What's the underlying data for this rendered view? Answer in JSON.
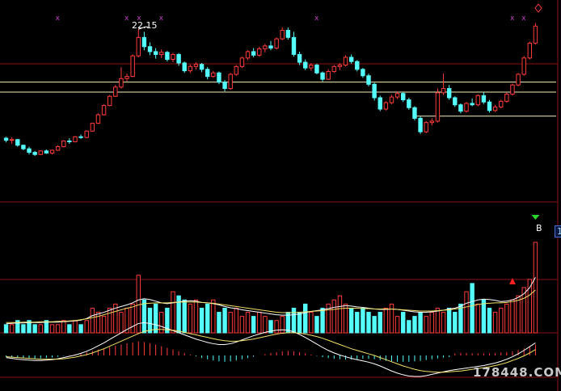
{
  "chart_data": [
    {
      "type": "candlestick",
      "panel": "price",
      "title": "",
      "annotation_high": "22.15",
      "support_lines": [
        "upper",
        "middle",
        "lower"
      ],
      "markers": [
        "x",
        "x",
        "x",
        "x",
        "x",
        "x",
        "x",
        "diamond"
      ],
      "ohlc": [
        [
          6.8,
          7.0,
          6.2,
          6.5
        ],
        [
          6.5,
          6.9,
          6.0,
          6.6
        ],
        [
          6.6,
          6.7,
          5.6,
          5.8
        ],
        [
          5.8,
          5.9,
          5.1,
          5.3
        ],
        [
          5.3,
          5.6,
          4.5,
          4.8
        ],
        [
          4.8,
          5.0,
          4.3,
          4.5
        ],
        [
          4.5,
          5.1,
          4.4,
          5.0
        ],
        [
          5.0,
          5.2,
          4.6,
          4.7
        ],
        [
          4.7,
          5.2,
          4.5,
          5.1
        ],
        [
          5.1,
          5.8,
          5.0,
          5.6
        ],
        [
          5.6,
          6.5,
          5.5,
          6.4
        ],
        [
          6.4,
          6.8,
          6.0,
          6.3
        ],
        [
          6.3,
          7.1,
          6.2,
          7.0
        ],
        [
          7.0,
          7.3,
          6.7,
          6.9
        ],
        [
          6.9,
          7.9,
          6.8,
          7.8
        ],
        [
          7.8,
          9.0,
          7.7,
          8.9
        ],
        [
          8.9,
          10.3,
          8.8,
          10.1
        ],
        [
          10.1,
          11.6,
          10.0,
          11.4
        ],
        [
          11.4,
          12.9,
          11.3,
          12.7
        ],
        [
          12.7,
          14.3,
          12.6,
          14.0
        ],
        [
          14.0,
          16.8,
          13.8,
          15.2
        ],
        [
          15.2,
          15.9,
          14.8,
          15.5
        ],
        [
          15.5,
          18.6,
          15.4,
          18.4
        ],
        [
          18.4,
          22.15,
          18.2,
          21.0
        ],
        [
          21.0,
          21.8,
          19.2,
          19.7
        ],
        [
          19.7,
          20.3,
          18.5,
          19.0
        ],
        [
          19.0,
          19.5,
          18.0,
          18.6
        ],
        [
          18.6,
          19.3,
          18.1,
          18.9
        ],
        [
          18.9,
          19.1,
          17.6,
          17.9
        ],
        [
          17.9,
          18.8,
          17.5,
          18.6
        ],
        [
          18.6,
          18.8,
          17.0,
          17.4
        ],
        [
          17.4,
          17.6,
          16.0,
          16.3
        ],
        [
          16.3,
          17.2,
          16.0,
          16.9
        ],
        [
          16.9,
          17.5,
          16.5,
          17.2
        ],
        [
          17.2,
          17.4,
          16.1,
          16.5
        ],
        [
          16.5,
          16.8,
          15.1,
          15.5
        ],
        [
          15.5,
          16.3,
          15.3,
          16.0
        ],
        [
          16.0,
          16.2,
          14.4,
          14.7
        ],
        [
          14.7,
          15.0,
          13.4,
          13.8
        ],
        [
          13.8,
          16.0,
          13.6,
          15.8
        ],
        [
          15.8,
          17.1,
          15.6,
          16.9
        ],
        [
          16.9,
          18.3,
          16.7,
          18.1
        ],
        [
          18.1,
          19.2,
          17.8,
          19.0
        ],
        [
          19.0,
          19.5,
          18.2,
          18.5
        ],
        [
          18.5,
          19.7,
          18.3,
          19.4
        ],
        [
          19.4,
          20.1,
          18.9,
          19.8
        ],
        [
          19.8,
          20.5,
          19.2,
          19.5
        ],
        [
          19.5,
          21.0,
          19.3,
          20.8
        ],
        [
          20.8,
          22.4,
          20.6,
          22.0
        ],
        [
          22.0,
          22.4,
          20.7,
          21.0
        ],
        [
          21.0,
          21.8,
          18.3,
          18.6
        ],
        [
          18.6,
          19.0,
          17.1,
          17.5
        ],
        [
          17.5,
          17.9,
          16.4,
          16.7
        ],
        [
          16.7,
          17.4,
          16.3,
          17.1
        ],
        [
          17.1,
          17.3,
          15.8,
          16.0
        ],
        [
          16.0,
          16.2,
          14.8,
          15.1
        ],
        [
          15.1,
          16.5,
          15.0,
          16.2
        ],
        [
          16.2,
          17.1,
          16.0,
          16.9
        ],
        [
          16.9,
          17.4,
          16.4,
          17.1
        ],
        [
          17.1,
          18.5,
          16.9,
          18.2
        ],
        [
          18.2,
          18.6,
          17.3,
          17.6
        ],
        [
          17.6,
          17.8,
          16.2,
          16.5
        ],
        [
          16.5,
          16.7,
          15.3,
          15.6
        ],
        [
          15.6,
          15.9,
          14.1,
          14.4
        ],
        [
          14.4,
          14.6,
          12.1,
          12.5
        ],
        [
          12.5,
          12.8,
          10.6,
          10.9
        ],
        [
          10.9,
          12.0,
          10.7,
          11.8
        ],
        [
          11.8,
          12.9,
          11.6,
          12.6
        ],
        [
          12.6,
          13.4,
          12.3,
          13.1
        ],
        [
          13.1,
          13.3,
          11.9,
          12.2
        ],
        [
          12.2,
          12.5,
          10.8,
          11.1
        ],
        [
          11.1,
          11.3,
          9.3,
          9.6
        ],
        [
          9.6,
          9.9,
          7.4,
          7.7
        ],
        [
          7.7,
          9.2,
          7.5,
          9.0
        ],
        [
          9.0,
          9.6,
          8.6,
          9.2
        ],
        [
          9.2,
          13.8,
          9.0,
          13.2
        ],
        [
          13.2,
          15.9,
          12.9,
          13.8
        ],
        [
          13.8,
          14.3,
          12.2,
          12.5
        ],
        [
          12.5,
          12.7,
          11.2,
          11.5
        ],
        [
          11.5,
          11.7,
          10.3,
          10.6
        ],
        [
          10.6,
          11.9,
          10.4,
          11.7
        ],
        [
          11.7,
          12.4,
          11.3,
          11.5
        ],
        [
          11.5,
          13.0,
          11.3,
          12.8
        ],
        [
          12.8,
          13.3,
          11.6,
          11.9
        ],
        [
          11.9,
          12.2,
          10.4,
          10.7
        ],
        [
          10.7,
          11.5,
          10.5,
          11.2
        ],
        [
          11.2,
          12.2,
          11.0,
          12.0
        ],
        [
          12.0,
          13.2,
          11.8,
          13.0
        ],
        [
          13.0,
          14.5,
          12.8,
          14.3
        ],
        [
          14.3,
          16.0,
          14.1,
          15.8
        ],
        [
          15.8,
          18.4,
          15.6,
          18.1
        ],
        [
          18.1,
          20.4,
          17.9,
          20.2
        ],
        [
          20.2,
          23.0,
          20.0,
          22.6
        ]
      ],
      "h_lines": [
        14.7,
        13.3,
        9.9
      ]
    },
    {
      "type": "bar",
      "panel": "volume",
      "title": "",
      "side_label": "1",
      "signal_label": "B",
      "values": [
        2,
        2,
        3,
        2,
        3,
        2,
        2,
        3,
        2,
        2,
        3,
        2,
        3,
        2,
        3,
        6,
        5,
        4,
        6,
        7,
        5,
        6,
        7,
        14,
        8,
        6,
        7,
        5,
        6,
        10,
        9,
        8,
        7,
        8,
        6,
        7,
        8,
        5,
        6,
        5,
        6,
        4,
        5,
        4,
        5,
        4,
        3,
        3,
        4,
        5,
        6,
        5,
        7,
        5,
        4,
        6,
        7,
        8,
        9,
        7,
        6,
        5,
        6,
        5,
        4,
        5,
        6,
        7,
        4,
        5,
        3,
        4,
        5,
        4,
        5,
        6,
        5,
        6,
        5,
        7,
        10,
        12,
        7,
        8,
        6,
        5,
        6,
        7,
        8,
        9,
        11,
        13,
        22
      ],
      "ma_short": [
        2.2,
        2.3,
        2.4,
        2.4,
        2.5,
        2.5,
        2.5,
        2.6,
        2.6,
        2.6,
        2.7,
        2.8,
        2.9,
        3.1,
        3.5,
        4.2,
        4.6,
        5.0,
        5.5,
        6.0,
        6.4,
        6.8,
        7.3,
        8.0,
        8.3,
        8.1,
        7.7,
        7.3,
        7.1,
        7.3,
        7.5,
        7.7,
        7.8,
        7.7,
        7.4,
        7.3,
        7.1,
        6.8,
        6.4,
        6.1,
        5.9,
        5.6,
        5.4,
        5.2,
        5.0,
        4.8,
        4.6,
        4.4,
        4.3,
        4.3,
        4.4,
        4.6,
        4.9,
        5.2,
        5.4,
        5.6,
        5.9,
        6.2,
        6.4,
        6.6,
        6.5,
        6.3,
        6.2,
        6.0,
        5.8,
        5.7,
        5.7,
        5.8,
        5.7,
        5.5,
        5.3,
        5.1,
        5.0,
        5.0,
        5.1,
        5.3,
        5.5,
        5.8,
        6.0,
        6.5,
        7.2,
        7.6,
        8.0,
        8.2,
        8.1,
        7.9,
        7.6,
        7.7,
        8.0,
        8.6,
        9.5,
        11.0,
        13.5
      ],
      "ma_long": [
        2.5,
        2.5,
        2.5,
        2.6,
        2.6,
        2.6,
        2.7,
        2.7,
        2.7,
        2.8,
        2.8,
        2.9,
        3.0,
        3.2,
        3.4,
        3.7,
        4.0,
        4.4,
        4.8,
        5.2,
        5.6,
        6.0,
        6.3,
        6.8,
        7.1,
        7.2,
        7.3,
        7.3,
        7.3,
        7.4,
        7.5,
        7.5,
        7.5,
        7.5,
        7.4,
        7.3,
        7.2,
        7.0,
        6.8,
        6.6,
        6.4,
        6.2,
        6.0,
        5.8,
        5.6,
        5.4,
        5.2,
        5.0,
        4.9,
        4.9,
        4.9,
        5.0,
        5.1,
        5.2,
        5.3,
        5.4,
        5.6,
        5.7,
        5.9,
        6.0,
        6.0,
        6.0,
        5.9,
        5.9,
        5.8,
        5.8,
        5.8,
        5.8,
        5.7,
        5.6,
        5.5,
        5.4,
        5.3,
        5.3,
        5.3,
        5.4,
        5.5,
        5.6,
        5.8,
        6.0,
        6.3,
        6.6,
        6.9,
        7.1,
        7.2,
        7.3,
        7.3,
        7.4,
        7.6,
        7.9,
        8.4,
        9.2,
        10.4
      ]
    },
    {
      "type": "bar",
      "panel": "macd",
      "title": "",
      "histogram": [
        -0.3,
        -0.4,
        -0.5,
        -0.6,
        -0.7,
        -0.8,
        -0.7,
        -0.6,
        -0.5,
        -0.3,
        -0.1,
        0.1,
        0.3,
        0.5,
        0.8,
        1.1,
        1.4,
        1.7,
        2.0,
        2.3,
        2.6,
        2.9,
        3.1,
        3.3,
        3.2,
        2.9,
        2.6,
        2.2,
        1.8,
        1.4,
        1.0,
        0.6,
        0.2,
        -0.2,
        -0.6,
        -0.9,
        -1.2,
        -1.4,
        -1.5,
        -1.4,
        -1.2,
        -0.9,
        -0.6,
        -0.3,
        0.0,
        0.3,
        0.6,
        0.8,
        1.0,
        1.1,
        1.0,
        0.8,
        0.5,
        0.2,
        -0.1,
        -0.4,
        -0.6,
        -0.8,
        -0.9,
        -1.0,
        -1.0,
        -0.9,
        -0.8,
        -0.8,
        -0.9,
        -1.1,
        -1.3,
        -1.4,
        -1.5,
        -1.5,
        -1.5,
        -1.4,
        -1.3,
        -1.1,
        -0.9,
        -0.7,
        -0.5,
        -0.4,
        0.5,
        0.6,
        0.6,
        0.5,
        0.5,
        0.5,
        0.5,
        0.6,
        0.7,
        0.8,
        1.0,
        1.3,
        1.7,
        2.1,
        2.6
      ],
      "dif": [
        -0.5,
        -0.7,
        -0.9,
        -1.0,
        -1.1,
        -1.2,
        -1.2,
        -1.1,
        -1.0,
        -0.8,
        -0.5,
        -0.2,
        0.1,
        0.5,
        1.0,
        1.6,
        2.3,
        3.0,
        3.8,
        4.6,
        5.4,
        6.2,
        6.9,
        7.6,
        7.8,
        7.6,
        7.3,
        6.9,
        6.4,
        5.9,
        5.4,
        4.9,
        4.4,
        3.9,
        3.5,
        3.1,
        2.8,
        2.6,
        2.6,
        2.8,
        3.2,
        3.7,
        4.2,
        4.7,
        5.1,
        5.5,
        5.8,
        6.0,
        6.1,
        6.0,
        5.6,
        5.0,
        4.3,
        3.5,
        2.7,
        1.9,
        1.2,
        0.6,
        0.1,
        -0.3,
        -0.7,
        -1.0,
        -1.3,
        -1.6,
        -2.0,
        -2.5,
        -3.1,
        -3.7,
        -4.2,
        -4.6,
        -4.9,
        -5.0,
        -5.0,
        -4.8,
        -4.5,
        -4.2,
        -3.9,
        -3.6,
        -3.4,
        -3.2,
        -3.0,
        -2.8,
        -2.6,
        -2.4,
        -2.1,
        -1.8,
        -1.4,
        -0.9,
        -0.3,
        0.4,
        1.2,
        2.1,
        3.0
      ],
      "dea": [
        -0.3,
        -0.4,
        -0.5,
        -0.6,
        -0.7,
        -0.8,
        -0.9,
        -0.9,
        -0.9,
        -0.9,
        -0.8,
        -0.6,
        -0.4,
        -0.1,
        0.2,
        0.6,
        1.1,
        1.6,
        2.2,
        2.8,
        3.4,
        4.0,
        4.6,
        5.2,
        5.7,
        6.0,
        6.2,
        6.2,
        6.1,
        6.0,
        5.8,
        5.5,
        5.2,
        4.9,
        4.6,
        4.3,
        4.0,
        3.7,
        3.5,
        3.4,
        3.4,
        3.5,
        3.7,
        3.9,
        4.2,
        4.5,
        4.8,
        5.1,
        5.3,
        5.4,
        5.4,
        5.3,
        5.1,
        4.8,
        4.5,
        4.1,
        3.6,
        3.1,
        2.6,
        2.1,
        1.6,
        1.2,
        0.8,
        0.4,
        0.0,
        -0.5,
        -1.0,
        -1.5,
        -2.0,
        -2.5,
        -2.9,
        -3.3,
        -3.6,
        -3.8,
        -3.9,
        -4.0,
        -4.0,
        -3.9,
        -3.8,
        -3.7,
        -3.5,
        -3.3,
        -3.1,
        -2.9,
        -2.7,
        -2.4,
        -2.1,
        -1.7,
        -1.2,
        -0.7,
        -0.1,
        0.6,
        1.4
      ]
    }
  ],
  "watermark": "178448.COM",
  "colors": {
    "up": "#ff3b3b",
    "down": "#54fcfc",
    "grid": "#8c1010",
    "hline": "#f4f0b8",
    "marker": "#c040c0",
    "ma_short": "#ffffff",
    "ma_long": "#f2e06a",
    "signal_green": "#2bd62b",
    "signal_red": "#ff2020"
  }
}
